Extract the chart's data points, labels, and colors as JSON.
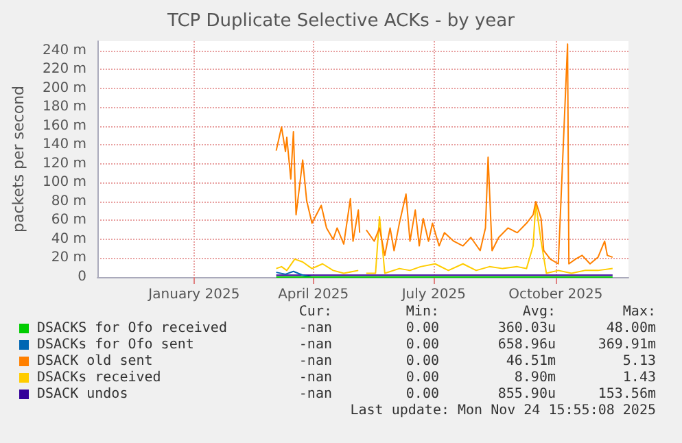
{
  "chart_data": {
    "type": "line",
    "title": "TCP Duplicate Selective ACKs - by year",
    "ylabel": "packets per second",
    "xlim": [
      "2024-10-20",
      "2025-11-25"
    ],
    "xticks": [
      {
        "value": "2025-01-01",
        "label": "January 2025"
      },
      {
        "value": "2025-04-01",
        "label": "April 2025"
      },
      {
        "value": "2025-07-01",
        "label": "July 2025"
      },
      {
        "value": "2025-10-01",
        "label": "October 2025"
      }
    ],
    "ylim": [
      0,
      250
    ],
    "yticks": [
      0,
      {
        "value": 20,
        "label": "20 m"
      },
      {
        "value": 40,
        "label": "40 m"
      },
      {
        "value": 60,
        "label": "60 m"
      },
      {
        "value": 80,
        "label": "80 m"
      },
      {
        "value": 100,
        "label": "100 m"
      },
      {
        "value": 120,
        "label": "120 m"
      },
      {
        "value": 140,
        "label": "140 m"
      },
      {
        "value": 160,
        "label": "160 m"
      },
      {
        "value": 180,
        "label": "180 m"
      },
      {
        "value": 200,
        "label": "200 m"
      },
      {
        "value": 220,
        "label": "220 m"
      },
      {
        "value": 240,
        "label": "240 m"
      }
    ],
    "grid": true,
    "legend": "bottom",
    "series": [
      {
        "name": "DSACKS for Ofo received",
        "color": "#00cc00",
        "x": [
          "2025-03-04",
          "2025-04-15",
          "2025-06-01",
          "2025-08-01",
          "2025-10-01",
          "2025-11-13"
        ],
        "values": [
          0,
          0,
          0,
          0,
          0,
          0
        ]
      },
      {
        "name": "DSACKs for Ofo sent",
        "color": "#0066b3",
        "x": [
          "2025-03-04",
          "2025-03-11",
          "2025-03-17",
          "2025-03-24",
          "2025-03-31"
        ],
        "values": [
          5,
          3,
          6,
          2,
          0
        ]
      },
      {
        "name": "DSACK old sent",
        "color": "#ff8000",
        "x": [
          "2025-03-04",
          "2025-03-08",
          "2025-03-11",
          "2025-03-12",
          "2025-03-15",
          "2025-03-17",
          "2025-03-19",
          "2025-03-24",
          "2025-03-27",
          "2025-03-31",
          "2025-04-07",
          "2025-04-11",
          "2025-04-16",
          "2025-04-19",
          "2025-04-24",
          "2025-04-29",
          "2025-05-01",
          "2025-05-05",
          "2025-05-06",
          "2025-05-08",
          "2025-05-11",
          "2025-05-17",
          "2025-05-21",
          "2025-05-25",
          "2025-05-29",
          "2025-06-01",
          "2025-06-05",
          "2025-06-10",
          "2025-06-13",
          "2025-06-17",
          "2025-06-20",
          "2025-06-23",
          "2025-06-27",
          "2025-06-30",
          "2025-07-05",
          "2025-07-09",
          "2025-07-16",
          "2025-07-23",
          "2025-07-29",
          "2025-08-05",
          "2025-08-09",
          "2025-08-11",
          "2025-08-14",
          "2025-08-19",
          "2025-08-26",
          "2025-09-02",
          "2025-09-09",
          "2025-09-14",
          "2025-09-16",
          "2025-09-20",
          "2025-09-22",
          "2025-09-27",
          "2025-10-03",
          "2025-10-10",
          "2025-10-11",
          "2025-10-16",
          "2025-10-21",
          "2025-10-27",
          "2025-11-02",
          "2025-11-07",
          "2025-11-09",
          "2025-11-13"
        ],
        "values": [
          134,
          159,
          133,
          148,
          104,
          154,
          66,
          124,
          81,
          57,
          76,
          52,
          40,
          52,
          35,
          83,
          38,
          71,
          47,
          null,
          50,
          38,
          52,
          23,
          52,
          28,
          57,
          88,
          38,
          71,
          33,
          62,
          38,
          57,
          33,
          47,
          38,
          33,
          42,
          28,
          52,
          127,
          28,
          42,
          52,
          47,
          57,
          66,
          80,
          62,
          28,
          19,
          14,
          247,
          14,
          19,
          23,
          14,
          21,
          38,
          23,
          21
        ]
      },
      {
        "name": "DSACKs received",
        "color": "#ffcc00",
        "x": [
          "2025-03-04",
          "2025-03-08",
          "2025-03-12",
          "2025-03-18",
          "2025-03-24",
          "2025-03-31",
          "2025-04-08",
          "2025-04-16",
          "2025-04-24",
          "2025-05-05",
          "2025-05-08",
          "2025-05-11",
          "2025-05-18",
          "2025-05-21",
          "2025-05-25",
          "2025-06-05",
          "2025-06-13",
          "2025-06-21",
          "2025-07-02",
          "2025-07-12",
          "2025-07-23",
          "2025-08-02",
          "2025-08-12",
          "2025-08-22",
          "2025-09-02",
          "2025-09-09",
          "2025-09-14",
          "2025-09-16",
          "2025-09-20",
          "2025-09-24",
          "2025-10-03",
          "2025-10-13",
          "2025-10-23",
          "2025-11-02",
          "2025-11-13"
        ],
        "values": [
          9,
          11,
          7,
          19,
          16,
          9,
          14,
          7,
          4,
          7,
          null,
          4,
          4,
          64,
          4,
          9,
          7,
          11,
          14,
          7,
          14,
          7,
          11,
          9,
          11,
          9,
          33,
          78,
          38,
          4,
          7,
          4,
          7,
          7,
          9
        ]
      },
      {
        "name": "DSACK undos",
        "color": "#330099",
        "x": [
          "2025-03-04",
          "2025-04-01",
          "2025-05-01",
          "2025-06-01",
          "2025-07-01",
          "2025-08-01",
          "2025-09-01",
          "2025-10-01",
          "2025-11-13"
        ],
        "values": [
          2,
          2,
          2,
          2,
          2,
          2,
          2,
          2,
          2
        ]
      }
    ],
    "annotations": [
      "Cur: Min: Avg: Max:",
      "-nan 0.00 360.03u 48.00m",
      "-nan 0.00 658.96u 369.91m",
      "-nan 0.00 46.51m 5.13",
      "-nan 0.00 8.90m 1.43",
      "-nan 0.00 855.90u 153.56m",
      "Last update: Mon Nov 24 15:55:08 2025"
    ]
  }
}
